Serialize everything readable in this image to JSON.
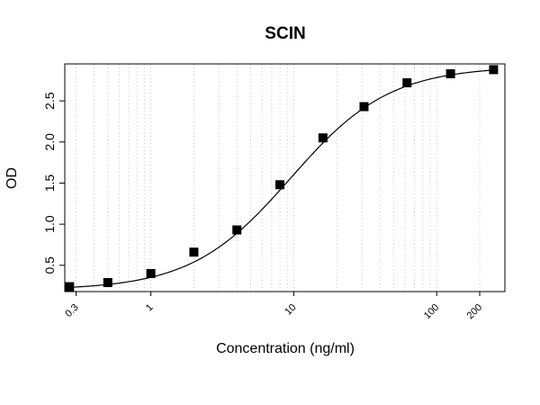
{
  "chart_data": {
    "type": "scatter",
    "title": "SCIN",
    "xlabel": "Concentration (ng/ml)",
    "ylabel": "OD",
    "x_scale": "log",
    "xlim": [
      0.25,
      300
    ],
    "ylim": [
      0.18,
      2.95
    ],
    "x_ticks": [
      {
        "value": 0.3,
        "label": "0.3"
      },
      {
        "value": 1,
        "label": "1"
      },
      {
        "value": 10,
        "label": "10"
      },
      {
        "value": 100,
        "label": "100"
      },
      {
        "value": 200,
        "label": "200"
      }
    ],
    "y_ticks": [
      {
        "value": 0.5,
        "label": "0.5"
      },
      {
        "value": 1.0,
        "label": "1.0"
      },
      {
        "value": 1.5,
        "label": "1.5"
      },
      {
        "value": 2.0,
        "label": "2.0"
      },
      {
        "value": 2.5,
        "label": "2.5"
      }
    ],
    "grid": "vertical dotted at log minor ticks",
    "series": [
      {
        "marker": "square",
        "color": "#000000",
        "x": [
          0.27,
          0.5,
          1,
          2,
          4,
          8,
          16,
          31,
          62,
          125,
          250
        ],
        "y": [
          0.24,
          0.29,
          0.4,
          0.66,
          0.93,
          1.48,
          2.05,
          2.43,
          2.72,
          2.83,
          2.88
        ]
      }
    ],
    "fit_curve": {
      "type": "4-parameter logistic",
      "color": "#000000"
    }
  }
}
